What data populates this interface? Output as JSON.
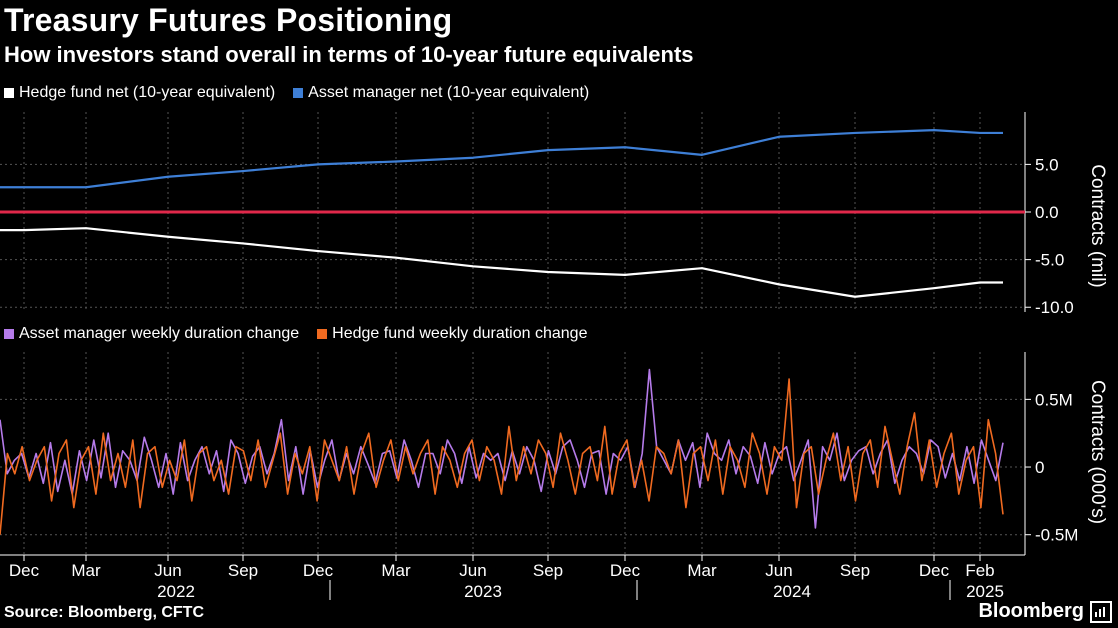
{
  "title": "Treasury Futures Positioning",
  "subtitle": "How investors stand overall in terms of 10-year future equivalents",
  "source": "Source: Bloomberg, CFTC",
  "brand": "Bloomberg",
  "colors": {
    "hedge_net": "#ffffff",
    "asset_net": "#3e7fd6",
    "zero_line": "#e0284a",
    "asset_weekly": "#b57bea",
    "hedge_weekly": "#f06a20"
  },
  "x_axis": {
    "months": [
      "Dec",
      "Mar",
      "Jun",
      "Sep",
      "Dec",
      "Mar",
      "Jun",
      "Sep",
      "Dec",
      "Mar",
      "Jun",
      "Sep",
      "Dec",
      "Feb"
    ],
    "years": [
      "2022",
      "2023",
      "2024",
      "2025"
    ]
  },
  "chart_data": [
    {
      "type": "line",
      "legend": [
        "Hedge fund net (10-year equivalent)",
        "Asset manager net (10-year equivalent)"
      ],
      "ylabel": "Contracts (mil)",
      "yticks": [
        "5.0",
        "0.0",
        "-5.0",
        "-10.0"
      ],
      "ylim": [
        -10.5,
        10.5
      ],
      "x": [
        "2021-12",
        "2022-03",
        "2022-06",
        "2022-09",
        "2022-12",
        "2023-03",
        "2023-06",
        "2023-09",
        "2023-12",
        "2024-03",
        "2024-06",
        "2024-09",
        "2024-12",
        "2025-02"
      ],
      "series": [
        {
          "name": "Hedge fund net (10-year equivalent)",
          "values": [
            -1.9,
            -1.7,
            -2.6,
            -3.3,
            -4.1,
            -4.8,
            -5.7,
            -6.3,
            -6.6,
            -5.9,
            -7.6,
            -8.9,
            -8.0,
            -7.4
          ]
        },
        {
          "name": "Asset manager net (10-year equivalent)",
          "values": [
            2.6,
            2.6,
            3.7,
            4.3,
            5.0,
            5.3,
            5.7,
            6.5,
            6.8,
            6.0,
            7.9,
            8.3,
            8.6,
            8.3
          ]
        }
      ]
    },
    {
      "type": "line",
      "legend": [
        "Asset manager weekly duration change",
        "Hedge fund weekly duration change"
      ],
      "ylabel": "Contracts (000's)",
      "yticks": [
        "0.5M",
        "0",
        "-0.5M"
      ],
      "ylim": [
        -0.65,
        0.85
      ],
      "series": [
        {
          "name": "Asset manager weekly duration change",
          "values": [
            0.35,
            -0.05,
            0.05,
            0.1,
            -0.08,
            0.1,
            -0.12,
            0.18,
            -0.18,
            0.05,
            -0.2,
            0.12,
            -0.1,
            0.2,
            -0.08,
            0.25,
            -0.15,
            0.12,
            0.05,
            -0.1,
            0.22,
            0.05,
            -0.15,
            0.1,
            -0.2,
            0.18,
            -0.1,
            0.05,
            0.15,
            -0.05,
            0.12,
            -0.18,
            0.2,
            0.1,
            -0.12,
            0.08,
            0.15,
            -0.05,
            0.1,
            0.35,
            -0.1,
            0.15,
            -0.2,
            0.12,
            -0.15,
            0.05,
            0.2,
            -0.1,
            0.1,
            -0.05,
            0.15,
            0.02,
            -0.12,
            0.1,
            0.12,
            -0.08,
            0.2,
            0.05,
            -0.15,
            0.1,
            0.1,
            -0.05,
            0.2,
            0.1,
            -0.12,
            0.15,
            -0.08,
            0.1,
            0.05,
            0.1,
            -0.1,
            0.12,
            -0.05,
            0.15,
            0.05,
            -0.18,
            0.12,
            -0.05,
            0.15,
            0.2,
            0.05,
            -0.15,
            0.1,
            0.12,
            -0.2,
            0.1,
            0.05,
            0.15,
            -0.15,
            0.1,
            0.72,
            0.15,
            0.05,
            -0.05,
            0.2,
            0.05,
            0.18,
            -0.15,
            0.25,
            0.1,
            0.05,
            0.2,
            -0.05,
            0.15,
            0.08,
            -0.12,
            0.18,
            -0.05,
            0.1,
            0.15,
            -0.1,
            0.05,
            0.2,
            -0.45,
            0.15,
            0.05,
            0.25,
            -0.1,
            0.05,
            0.12,
            0.15,
            -0.05,
            0.1,
            0.2,
            -0.12,
            0.05,
            0.15,
            0.1,
            -0.05,
            0.2,
            0.15,
            -0.08,
            0.1,
            -0.1,
            0.15,
            -0.12,
            0.2,
            0.05,
            -0.1,
            0.18
          ]
        },
        {
          "name": "Hedge fund weekly duration change",
          "values": [
            -0.5,
            0.1,
            -0.05,
            0.15,
            -0.1,
            0.05,
            0.15,
            -0.25,
            0.1,
            0.2,
            -0.3,
            0.05,
            0.15,
            -0.2,
            0.25,
            -0.1,
            0.1,
            -0.15,
            0.2,
            -0.3,
            0.1,
            0.15,
            -0.15,
            0.05,
            -0.1,
            0.2,
            -0.25,
            0.1,
            0.15,
            -0.1,
            0.05,
            -0.2,
            0.15,
            0.12,
            -0.1,
            0.2,
            -0.15,
            0.05,
            0.25,
            -0.2,
            0.1,
            -0.05,
            0.15,
            -0.25,
            0.2,
            0.05,
            -0.1,
            0.15,
            -0.2,
            0.1,
            0.25,
            -0.15,
            0.05,
            0.2,
            -0.1,
            0.15,
            -0.05,
            0.1,
            0.2,
            -0.2,
            0.15,
            0.05,
            -0.15,
            0.1,
            0.2,
            -0.1,
            0.15,
            0.05,
            -0.2,
            0.3,
            -0.1,
            0.15,
            -0.05,
            0.2,
            0.1,
            -0.15,
            0.25,
            0.05,
            -0.2,
            0.1,
            0.15,
            -0.1,
            0.3,
            -0.2,
            0.1,
            0.2,
            -0.15,
            0.05,
            -0.25,
            0.15,
            0.1,
            -0.05,
            0.2,
            -0.3,
            0.1,
            0.15,
            -0.1,
            0.2,
            -0.2,
            0.15,
            0.05,
            -0.15,
            0.25,
            0.1,
            -0.2,
            0.15,
            0.05,
            0.65,
            -0.3,
            0.1,
            0.15,
            -0.2,
            0.05,
            0.25,
            -0.1,
            0.15,
            -0.25,
            0.1,
            0.2,
            -0.15,
            0.3,
            0.05,
            -0.2,
            0.15,
            0.4,
            -0.1,
            0.2,
            -0.15,
            0.1,
            0.25,
            -0.2,
            0.05,
            0.15,
            -0.3,
            0.35,
            0.1,
            -0.35
          ]
        }
      ]
    }
  ]
}
